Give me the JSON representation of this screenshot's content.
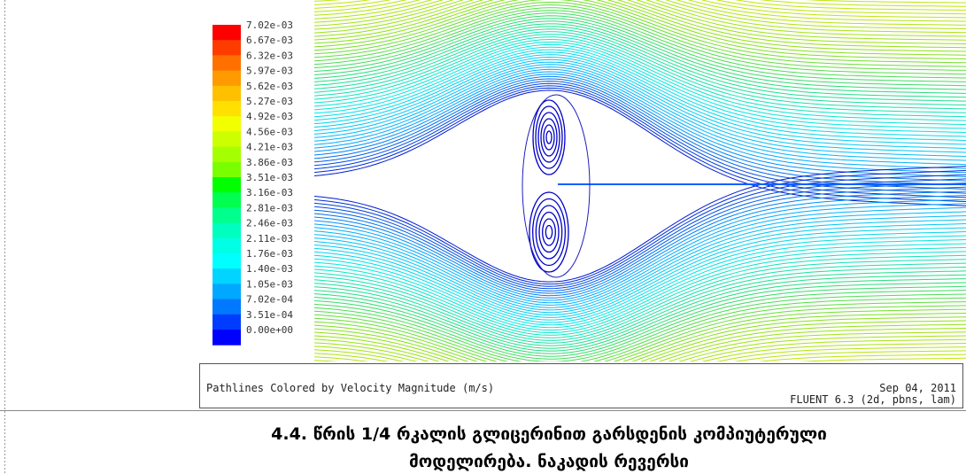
{
  "legend": {
    "items": [
      {
        "label": "7.02e-03",
        "color": "#ff0000"
      },
      {
        "label": "6.67e-03",
        "color": "#ff3c00"
      },
      {
        "label": "6.32e-03",
        "color": "#ff7000"
      },
      {
        "label": "5.97e-03",
        "color": "#ff9a00"
      },
      {
        "label": "5.62e-03",
        "color": "#ffc000"
      },
      {
        "label": "5.27e-03",
        "color": "#ffe000"
      },
      {
        "label": "4.92e-03",
        "color": "#f2ff00"
      },
      {
        "label": "4.56e-03",
        "color": "#ccff00"
      },
      {
        "label": "4.21e-03",
        "color": "#a6ff00"
      },
      {
        "label": "3.86e-03",
        "color": "#7aff00"
      },
      {
        "label": "3.51e-03",
        "color": "#00ff00"
      },
      {
        "label": "3.16e-03",
        "color": "#00ff50"
      },
      {
        "label": "2.81e-03",
        "color": "#00ff8c"
      },
      {
        "label": "2.46e-03",
        "color": "#00ffbe"
      },
      {
        "label": "2.11e-03",
        "color": "#00ffe4"
      },
      {
        "label": "1.76e-03",
        "color": "#00ffff"
      },
      {
        "label": "1.40e-03",
        "color": "#00d4ff"
      },
      {
        "label": "1.05e-03",
        "color": "#00a8ff"
      },
      {
        "label": "7.02e-04",
        "color": "#0078ff"
      },
      {
        "label": "3.51e-04",
        "color": "#003cff"
      },
      {
        "label": "0.00e+00",
        "color": "#0000ff"
      }
    ]
  },
  "info": {
    "title": "Pathlines Colored by Velocity Magnitude (m/s)",
    "date": "Sep 04, 2011",
    "software": "FLUENT 6.3 (2d, pbns, lam)"
  },
  "caption": {
    "lines": [
      "4.4. წრის 1/4 რკალის გლიცერინით გარსდენის კომპიუტერული",
      "მოდელირება. ნაკადის რევერსი"
    ]
  }
}
